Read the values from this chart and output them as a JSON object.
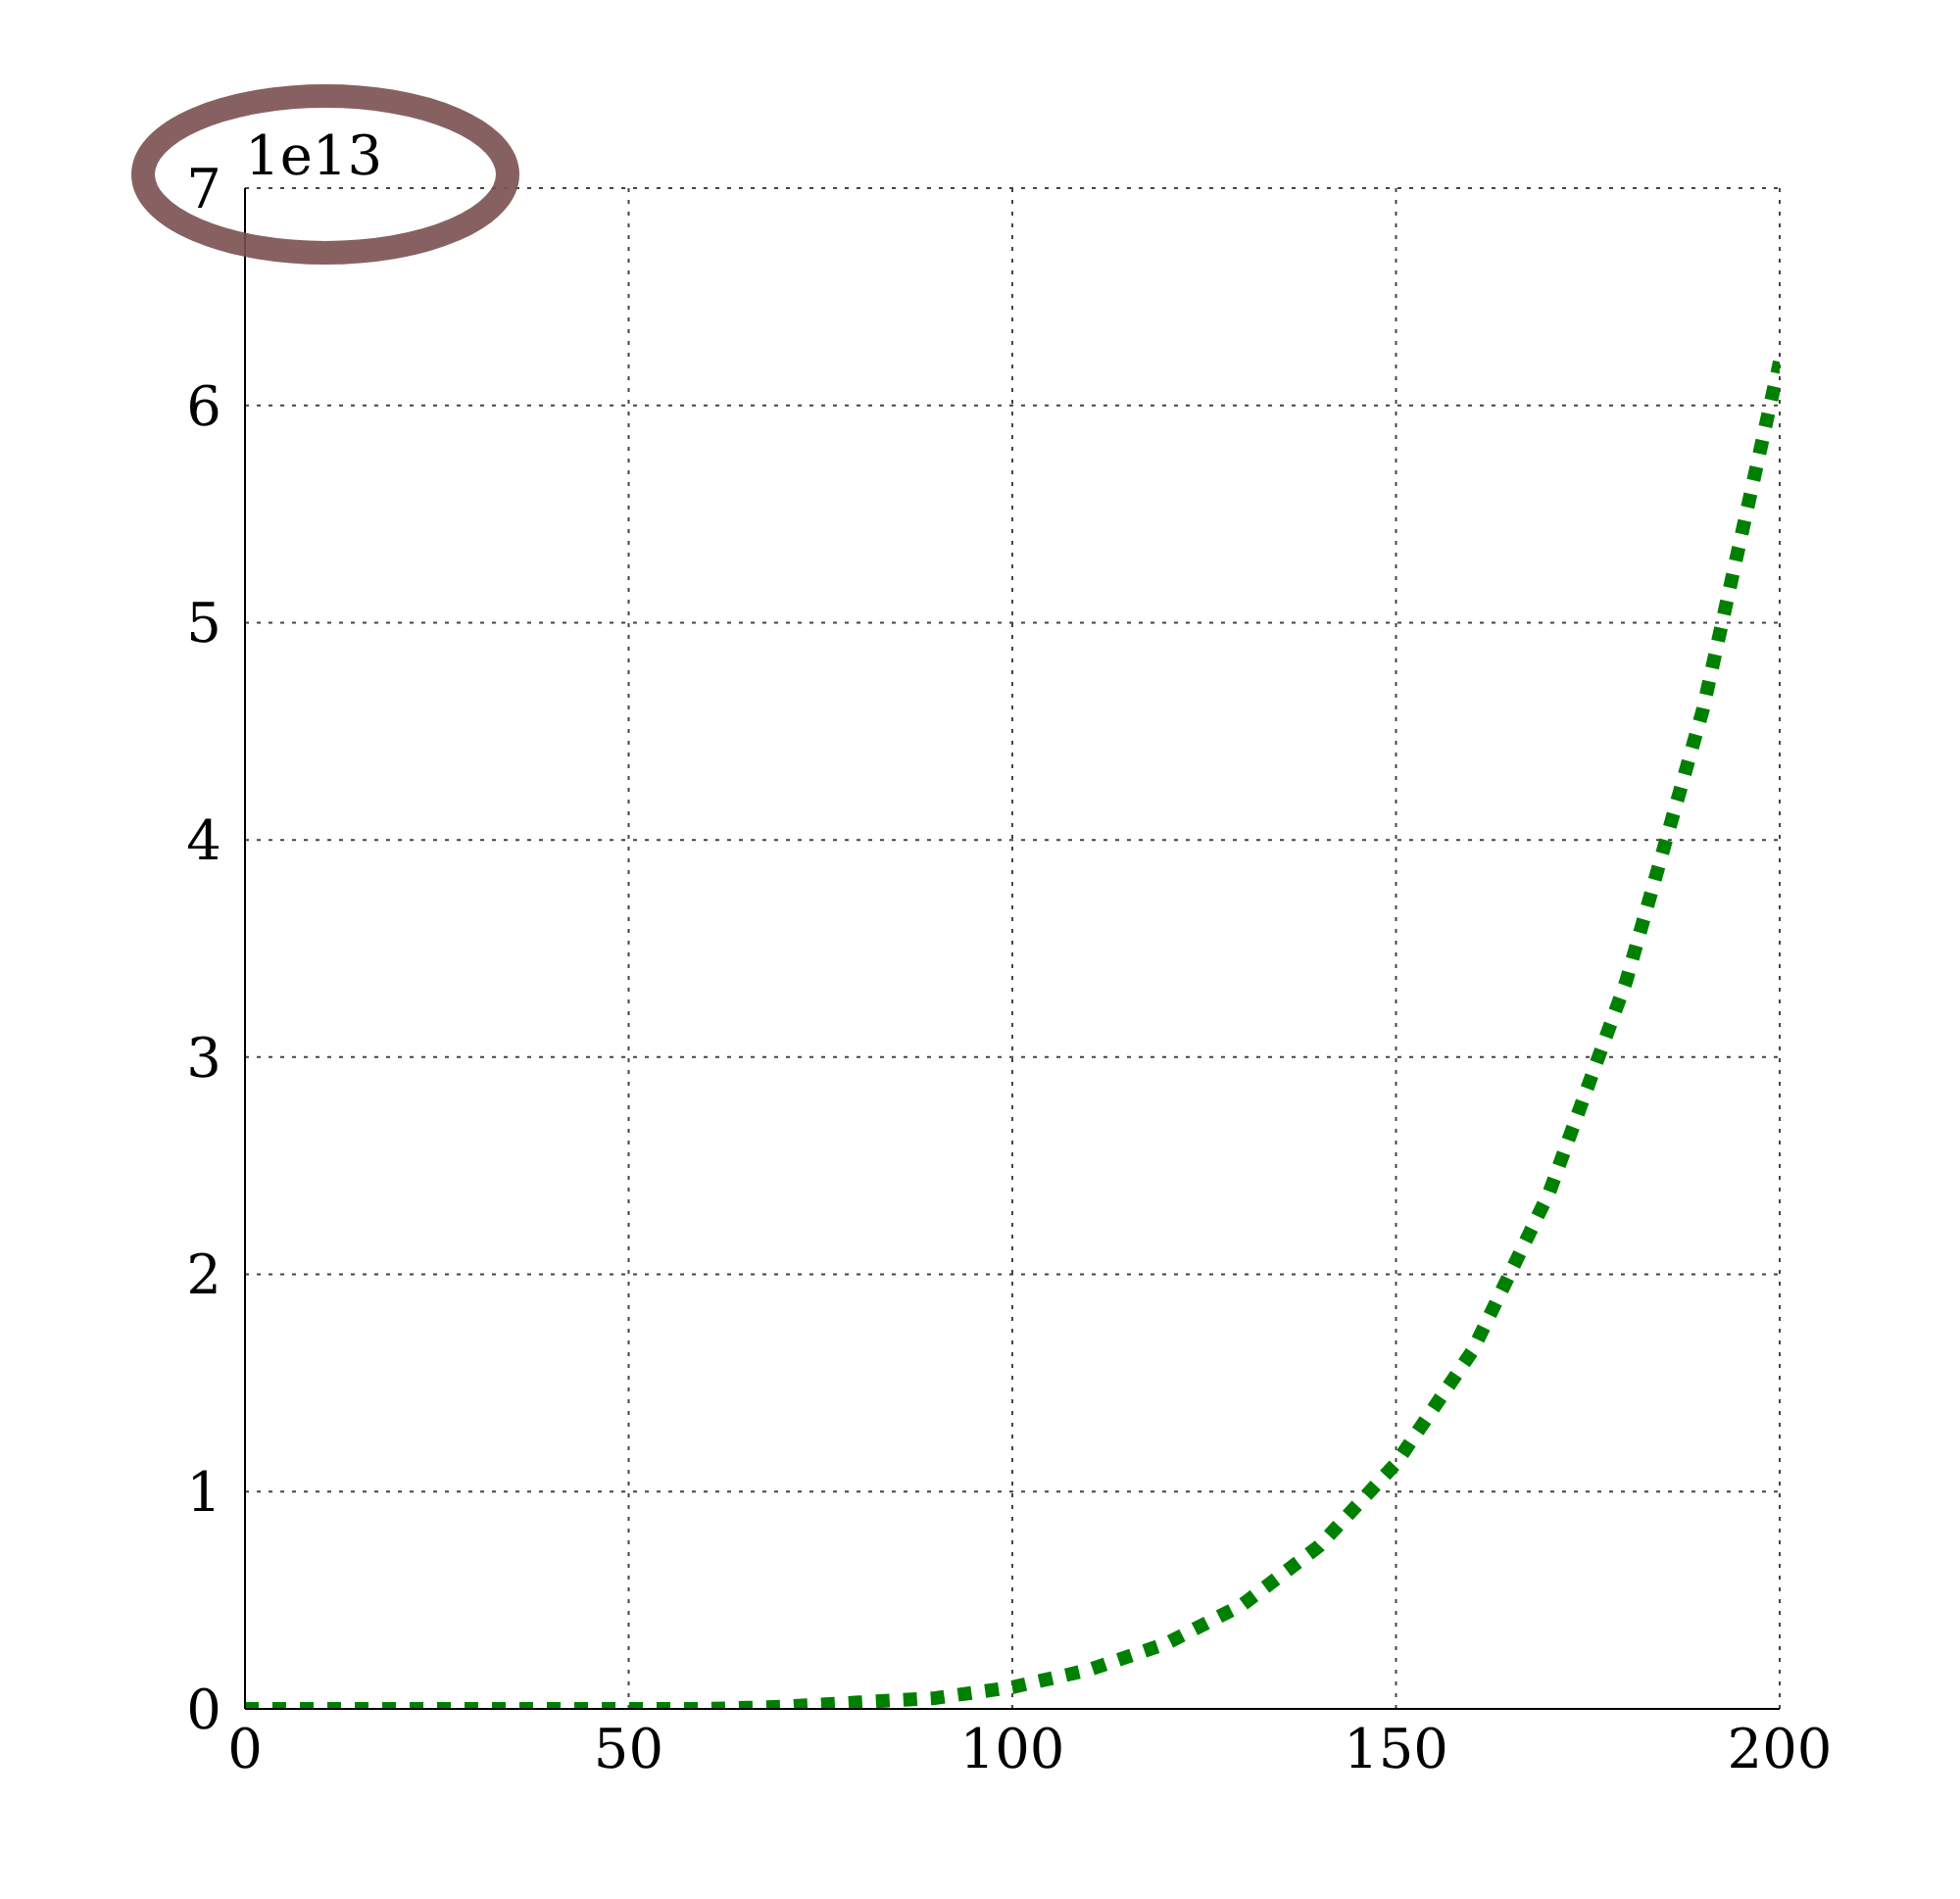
{
  "chart_data": {
    "type": "line",
    "x": [
      0,
      10,
      20,
      30,
      40,
      50,
      60,
      70,
      80,
      90,
      100,
      110,
      120,
      130,
      140,
      150,
      160,
      170,
      180,
      190,
      200
    ],
    "series": [
      {
        "color": "#008000",
        "values": [
          0,
          0,
          0,
          0,
          0,
          0,
          0,
          0.01,
          0.03,
          0.05,
          0.1,
          0.18,
          0.3,
          0.48,
          0.75,
          1.13,
          1.65,
          2.38,
          3.35,
          4.6,
          6.2
        ]
      }
    ],
    "xlim": [
      0,
      200
    ],
    "xticks": [
      0,
      50,
      100,
      150,
      200
    ],
    "ylim": [
      0,
      7
    ],
    "yticks": [
      0,
      1,
      2,
      3,
      4,
      5,
      6,
      7
    ],
    "annotations": [
      "1e13"
    ],
    "grid": true,
    "line_style": "dotted",
    "marker": "none",
    "legend": false
  }
}
